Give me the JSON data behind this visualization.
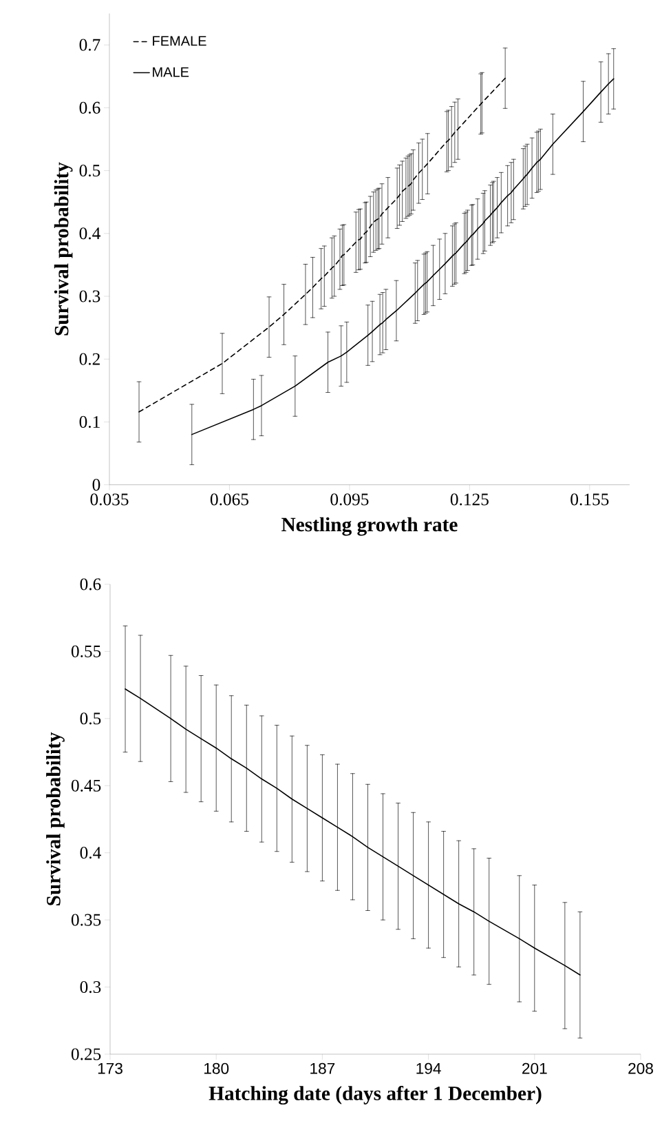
{
  "chart_data": [
    {
      "type": "line",
      "xlabel": "Nestling growth rate",
      "ylabel": "Survival probability",
      "xlim": [
        0.035,
        0.165
      ],
      "xticks": [
        0.035,
        0.065,
        0.095,
        0.125,
        0.155
      ],
      "ylim": [
        0,
        0.75
      ],
      "yticks": [
        0,
        0.1,
        0.2,
        0.3,
        0.4,
        0.5,
        0.6,
        0.7
      ],
      "legend": "top left",
      "marker": "none",
      "series": [
        {
          "name": "FEMALE",
          "color": "#000000",
          "line_style": "dashed",
          "x": [
            0.0424,
            0.0632,
            0.0749,
            0.0786,
            0.084,
            0.0858,
            0.0879,
            0.0887,
            0.0906,
            0.0912,
            0.0926,
            0.0932,
            0.0936,
            0.0966,
            0.0973,
            0.0977,
            0.0989,
            0.0992,
            0.1002,
            0.101,
            0.1016,
            0.1021,
            0.1024,
            0.1031,
            0.1046,
            0.1069,
            0.1075,
            0.1082,
            0.1091,
            0.1096,
            0.11,
            0.1104,
            0.1109,
            0.1123,
            0.1132,
            0.1145,
            0.1193,
            0.1197,
            0.1205,
            0.1213,
            0.1221,
            0.1278,
            0.1281,
            0.1339
          ],
          "values": [
            0.116,
            0.193,
            0.251,
            0.271,
            0.303,
            0.314,
            0.328,
            0.332,
            0.345,
            0.348,
            0.359,
            0.365,
            0.366,
            0.386,
            0.39,
            0.391,
            0.401,
            0.402,
            0.411,
            0.418,
            0.421,
            0.423,
            0.424,
            0.431,
            0.441,
            0.456,
            0.461,
            0.467,
            0.472,
            0.475,
            0.477,
            0.479,
            0.485,
            0.496,
            0.502,
            0.511,
            0.546,
            0.548,
            0.554,
            0.561,
            0.566,
            0.606,
            0.608,
            0.647
          ],
          "errors": [
            0.048,
            0.048,
            0.048,
            0.048,
            0.048,
            0.048,
            0.048,
            0.048,
            0.048,
            0.048,
            0.048,
            0.048,
            0.048,
            0.048,
            0.048,
            0.048,
            0.048,
            0.048,
            0.048,
            0.048,
            0.048,
            0.048,
            0.048,
            0.048,
            0.048,
            0.048,
            0.048,
            0.048,
            0.048,
            0.048,
            0.048,
            0.048,
            0.048,
            0.048,
            0.048,
            0.048,
            0.048,
            0.048,
            0.048,
            0.048,
            0.048,
            0.048,
            0.048,
            0.048
          ]
        },
        {
          "name": "MALE",
          "color": "#000000",
          "line_style": "solid",
          "x": [
            0.0556,
            0.071,
            0.073,
            0.0814,
            0.0896,
            0.0929,
            0.0943,
            0.0996,
            0.1007,
            0.1026,
            0.1033,
            0.1041,
            0.1067,
            0.1114,
            0.112,
            0.1136,
            0.114,
            0.1144,
            0.1159,
            0.1175,
            0.1189,
            0.1207,
            0.1212,
            0.1216,
            0.1237,
            0.1241,
            0.1245,
            0.1255,
            0.1258,
            0.127,
            0.1284,
            0.1288,
            0.1302,
            0.1307,
            0.131,
            0.1319,
            0.1329,
            0.1345,
            0.1354,
            0.136,
            0.1384,
            0.1389,
            0.1394,
            0.1406,
            0.1418,
            0.1422,
            0.1427,
            0.1458,
            0.1534,
            0.1578,
            0.1597,
            0.161
          ],
          "values": [
            0.08,
            0.12,
            0.126,
            0.157,
            0.195,
            0.205,
            0.211,
            0.238,
            0.244,
            0.255,
            0.258,
            0.263,
            0.277,
            0.305,
            0.309,
            0.319,
            0.321,
            0.323,
            0.333,
            0.343,
            0.352,
            0.364,
            0.367,
            0.369,
            0.384,
            0.386,
            0.389,
            0.397,
            0.398,
            0.407,
            0.416,
            0.42,
            0.429,
            0.433,
            0.435,
            0.441,
            0.449,
            0.46,
            0.465,
            0.47,
            0.487,
            0.491,
            0.494,
            0.504,
            0.513,
            0.515,
            0.518,
            0.542,
            0.594,
            0.625,
            0.638,
            0.646
          ],
          "errors": [
            0.048,
            0.048,
            0.048,
            0.048,
            0.048,
            0.048,
            0.048,
            0.048,
            0.048,
            0.048,
            0.048,
            0.048,
            0.048,
            0.048,
            0.048,
            0.048,
            0.048,
            0.048,
            0.048,
            0.048,
            0.048,
            0.048,
            0.048,
            0.048,
            0.048,
            0.048,
            0.048,
            0.048,
            0.048,
            0.048,
            0.048,
            0.048,
            0.048,
            0.048,
            0.048,
            0.048,
            0.048,
            0.048,
            0.048,
            0.048,
            0.048,
            0.048,
            0.048,
            0.048,
            0.048,
            0.048,
            0.048,
            0.048,
            0.048,
            0.048,
            0.048,
            0.048
          ]
        }
      ]
    },
    {
      "type": "line",
      "xlabel": "Hatching date (days after 1 December)",
      "ylabel": "Survival probability",
      "xlim": [
        173,
        208
      ],
      "xticks": [
        173,
        180,
        187,
        194,
        201,
        208
      ],
      "ylim": [
        0.25,
        0.6
      ],
      "yticks": [
        0.25,
        0.3,
        0.35,
        0.4,
        0.45,
        0.5,
        0.55,
        0.6
      ],
      "marker": "none",
      "line_style": "solid",
      "color": "#000000",
      "x": [
        174,
        175,
        177,
        178,
        179,
        180,
        181,
        182,
        183,
        184,
        185,
        186,
        187,
        188,
        189,
        190,
        191,
        192,
        193,
        194,
        195,
        196,
        197,
        198,
        200,
        201,
        203,
        204
      ],
      "values": [
        0.522,
        0.515,
        0.5,
        0.492,
        0.485,
        0.478,
        0.47,
        0.463,
        0.455,
        0.448,
        0.44,
        0.433,
        0.426,
        0.419,
        0.412,
        0.404,
        0.397,
        0.39,
        0.383,
        0.376,
        0.369,
        0.362,
        0.356,
        0.349,
        0.336,
        0.329,
        0.316,
        0.309
      ],
      "errors": [
        0.047,
        0.047,
        0.047,
        0.047,
        0.047,
        0.047,
        0.047,
        0.047,
        0.047,
        0.047,
        0.047,
        0.047,
        0.047,
        0.047,
        0.047,
        0.047,
        0.047,
        0.047,
        0.047,
        0.047,
        0.047,
        0.047,
        0.047,
        0.047,
        0.047,
        0.047,
        0.047,
        0.047
      ]
    }
  ]
}
